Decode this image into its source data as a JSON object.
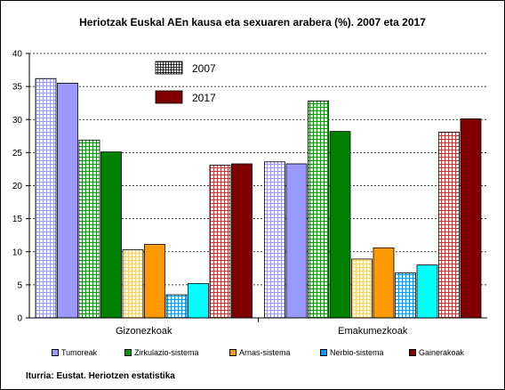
{
  "chart_data": {
    "type": "bar",
    "title": "Heriotzak Euskal AEn kausa eta sexuaren arabera (%). 2007 eta 2017",
    "categories": [
      "Gizonezkoak",
      "Emakumezkoak"
    ],
    "causes": [
      "Tumoreak",
      "Zirkulazio-sistema",
      "Arnas-sistema",
      "Nerbio-sistema",
      "Gainerakoak"
    ],
    "years": [
      "2007",
      "2017"
    ],
    "series": [
      {
        "name": "Tumoreak",
        "year": "2007",
        "color": "#9999ff",
        "pattern": "grid",
        "values": [
          36.2,
          23.6
        ]
      },
      {
        "name": "Tumoreak",
        "year": "2017",
        "color": "#9999ff",
        "pattern": "solid",
        "values": [
          35.5,
          23.3
        ]
      },
      {
        "name": "Zirkulazio-sistema",
        "year": "2007",
        "color": "#009900",
        "pattern": "grid",
        "values": [
          26.9,
          32.8
        ]
      },
      {
        "name": "Zirkulazio-sistema",
        "year": "2017",
        "color": "#008000",
        "pattern": "solid",
        "values": [
          25.1,
          28.2
        ]
      },
      {
        "name": "Arnas-sistema",
        "year": "2007",
        "color": "#ffcc66",
        "pattern": "grid",
        "values": [
          10.3,
          8.9
        ]
      },
      {
        "name": "Arnas-sistema",
        "year": "2017",
        "color": "#ff9900",
        "pattern": "solid",
        "values": [
          11.1,
          10.6
        ]
      },
      {
        "name": "Nerbio-sistema",
        "year": "2007",
        "color": "#0099ff",
        "pattern": "grid",
        "values": [
          3.5,
          6.8
        ]
      },
      {
        "name": "Nerbio-sistema",
        "year": "2017",
        "color": "#00ffff",
        "pattern": "solid",
        "values": [
          5.2,
          8.0
        ]
      },
      {
        "name": "Gainerakoak",
        "year": "2007",
        "color": "#cc3333",
        "pattern": "grid",
        "values": [
          23.1,
          28.1
        ]
      },
      {
        "name": "Gainerakoak",
        "year": "2017",
        "color": "#800000",
        "pattern": "solid",
        "values": [
          23.3,
          30.1
        ]
      }
    ],
    "ylim": [
      0,
      40
    ],
    "yticks": [
      0,
      5,
      10,
      15,
      20,
      25,
      30,
      35,
      40
    ],
    "grid": true,
    "year_legend_placement": "top-center",
    "cause_legend_placement": "bottom"
  },
  "legend": {
    "year_2007": "2007",
    "year_2017": "2017",
    "causes": [
      "Tumoreak",
      "Zirkulazio-sistema",
      "Arnas-sistema",
      "Nerbio-sistema",
      "Gainerakoak"
    ],
    "cause_colors": [
      "#9999ff",
      "#009900",
      "#ff9900",
      "#0099ff",
      "#800000"
    ]
  },
  "source": "Iturria: Eustat. Heriotzen estatistika"
}
